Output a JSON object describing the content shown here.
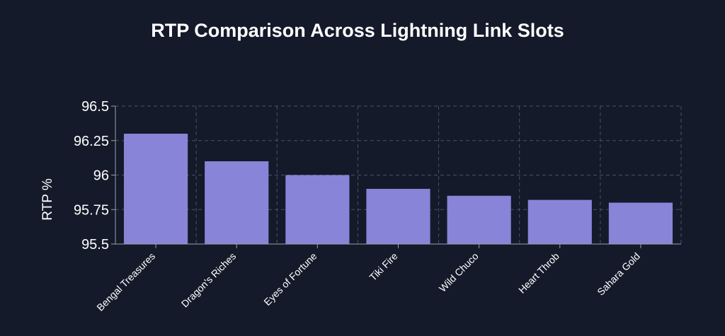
{
  "colors": {
    "background": "#141a2a",
    "bar": "#8884d8",
    "grid": "#4a5163",
    "text": "#ffffff"
  },
  "chart_data": {
    "type": "bar",
    "title": "RTP Comparison Across Lightning Link Slots",
    "xlabel": "",
    "ylabel": "RTP %",
    "categories": [
      "Bengal Treasures",
      "Dragon's Riches",
      "Eyes of Fortune",
      "Tiki Fire",
      "Wild Chuco",
      "Heart Throb",
      "Sahara Gold"
    ],
    "values": [
      96.3,
      96.1,
      96.0,
      95.9,
      95.85,
      95.82,
      95.8
    ],
    "ylim": [
      95.5,
      96.5
    ],
    "yticks": [
      "95.5",
      "95.75",
      "96",
      "96.25",
      "96.5"
    ],
    "grid": true,
    "legend": "none"
  }
}
